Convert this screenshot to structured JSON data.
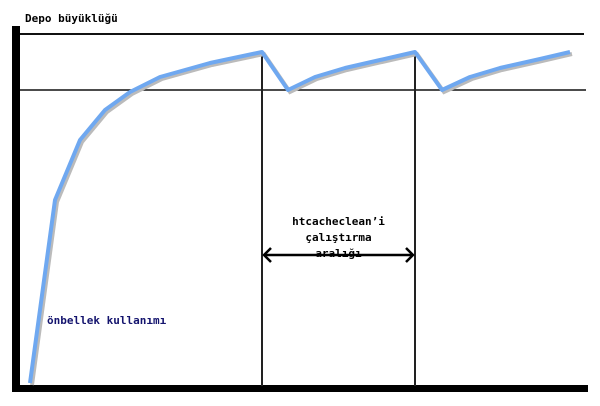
{
  "diagram": {
    "y_axis_label": "Depo büyüklüğü",
    "curve_label": "önbellek kullanımı",
    "interval_label_lines": [
      "htcacheclean’i",
      "çalıştırma",
      "aralığı"
    ],
    "curve_color": "#6fa8f0"
  }
}
